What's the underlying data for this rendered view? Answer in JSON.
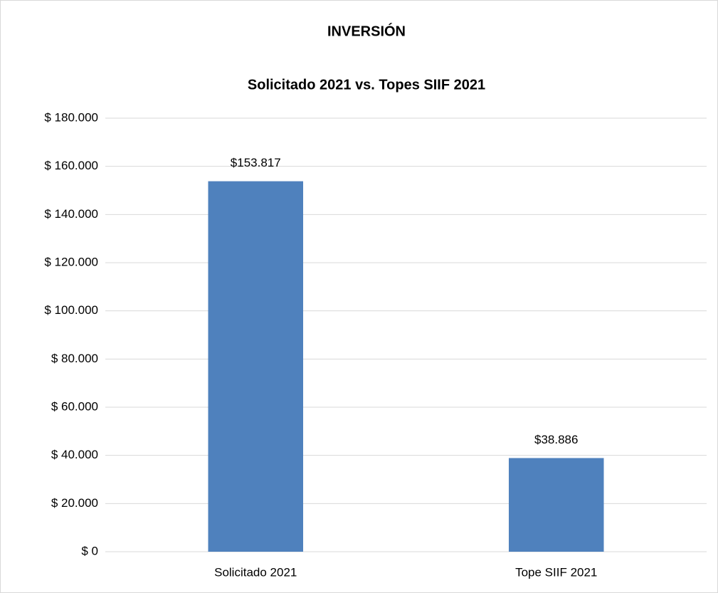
{
  "chart_data": {
    "type": "bar",
    "title": "INVERSIÓN",
    "subtitle": "Solicitado 2021 vs. Topes SIIF 2021",
    "categories": [
      "Solicitado 2021",
      "Tope SIIF 2021"
    ],
    "values": [
      153817,
      38886
    ],
    "value_labels": [
      "$153.817",
      "$38.886"
    ],
    "color": "#4f81bd",
    "ylim": [
      0,
      180000
    ],
    "yticks": [
      {
        "value": 0,
        "label": "$ 0"
      },
      {
        "value": 20000,
        "label": "$ 20.000"
      },
      {
        "value": 40000,
        "label": "$ 40.000"
      },
      {
        "value": 60000,
        "label": "$ 60.000"
      },
      {
        "value": 80000,
        "label": "$ 80.000"
      },
      {
        "value": 100000,
        "label": "$ 100.000"
      },
      {
        "value": 120000,
        "label": "$ 120.000"
      },
      {
        "value": 140000,
        "label": "$ 140.000"
      },
      {
        "value": 160000,
        "label": "$ 160.000"
      },
      {
        "value": 180000,
        "label": "$ 180.000"
      }
    ],
    "grid": true
  }
}
